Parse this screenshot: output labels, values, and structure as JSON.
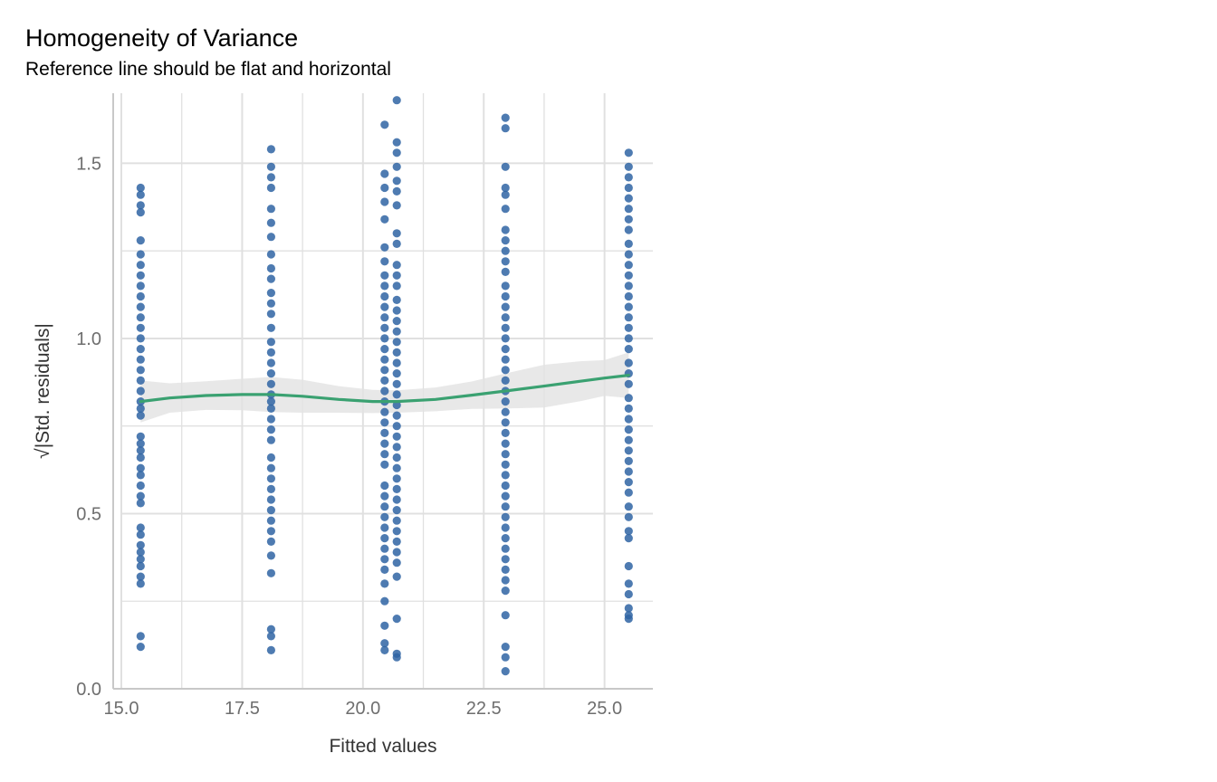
{
  "chart_data": {
    "type": "scatter",
    "title": "Homogeneity of Variance",
    "subtitle": "Reference line should be flat and horizontal",
    "xlabel": "Fitted values",
    "ylabel": "√|Std. residuals|",
    "xlim": [
      15.0,
      26.0
    ],
    "ylim": [
      0.0,
      1.7
    ],
    "x_ticks": [
      15.0,
      17.5,
      20.0,
      22.5,
      25.0
    ],
    "x_tick_labels": [
      "15.0",
      "17.5",
      "20.0",
      "22.5",
      "25.0"
    ],
    "y_ticks": [
      0.0,
      0.5,
      1.0,
      1.5
    ],
    "y_tick_labels": [
      "0.0",
      "0.5",
      "1.0",
      "1.5"
    ],
    "grid": true,
    "colors": {
      "points": "#2f64a3",
      "line": "#3aa171",
      "band": "#e2e2e2",
      "grid": "#e0e0e0",
      "axis": "#c8c8c8"
    },
    "point_groups": [
      {
        "x": 15.4,
        "y": [
          1.43,
          1.41,
          1.38,
          1.36,
          1.28,
          1.24,
          1.21,
          1.18,
          1.15,
          1.12,
          1.09,
          1.06,
          1.03,
          1.0,
          0.97,
          0.94,
          0.91,
          0.88,
          0.85,
          0.82,
          0.8,
          0.78,
          0.72,
          0.7,
          0.68,
          0.66,
          0.63,
          0.61,
          0.58,
          0.55,
          0.53,
          0.46,
          0.44,
          0.41,
          0.39,
          0.37,
          0.35,
          0.32,
          0.3,
          0.15,
          0.12
        ]
      },
      {
        "x": 18.1,
        "y": [
          1.54,
          1.49,
          1.46,
          1.43,
          1.37,
          1.33,
          1.29,
          1.24,
          1.2,
          1.17,
          1.13,
          1.1,
          1.07,
          1.03,
          0.99,
          0.96,
          0.93,
          0.9,
          0.87,
          0.84,
          0.82,
          0.8,
          0.77,
          0.74,
          0.71,
          0.66,
          0.63,
          0.6,
          0.57,
          0.54,
          0.51,
          0.48,
          0.45,
          0.42,
          0.38,
          0.33,
          0.17,
          0.15,
          0.11
        ]
      },
      {
        "x": 20.45,
        "y": [
          1.61,
          1.47,
          1.43,
          1.39,
          1.34,
          1.26,
          1.22,
          1.18,
          1.15,
          1.12,
          1.09,
          1.06,
          1.03,
          1.0,
          0.97,
          0.94,
          0.91,
          0.88,
          0.85,
          0.82,
          0.79,
          0.76,
          0.73,
          0.7,
          0.67,
          0.64,
          0.58,
          0.55,
          0.52,
          0.49,
          0.46,
          0.43,
          0.4,
          0.37,
          0.34,
          0.3,
          0.25,
          0.18,
          0.13,
          0.11
        ]
      },
      {
        "x": 20.7,
        "y": [
          1.68,
          1.56,
          1.53,
          1.49,
          1.45,
          1.42,
          1.38,
          1.3,
          1.27,
          1.21,
          1.18,
          1.15,
          1.11,
          1.08,
          1.05,
          1.02,
          0.99,
          0.96,
          0.93,
          0.9,
          0.87,
          0.84,
          0.81,
          0.78,
          0.75,
          0.72,
          0.69,
          0.66,
          0.63,
          0.6,
          0.57,
          0.54,
          0.51,
          0.48,
          0.45,
          0.42,
          0.39,
          0.36,
          0.32,
          0.2,
          0.1,
          0.09
        ]
      },
      {
        "x": 22.95,
        "y": [
          1.63,
          1.6,
          1.49,
          1.43,
          1.41,
          1.37,
          1.31,
          1.28,
          1.25,
          1.22,
          1.19,
          1.15,
          1.12,
          1.09,
          1.06,
          1.03,
          1.0,
          0.97,
          0.94,
          0.91,
          0.88,
          0.85,
          0.82,
          0.79,
          0.76,
          0.73,
          0.7,
          0.67,
          0.64,
          0.61,
          0.58,
          0.55,
          0.52,
          0.49,
          0.46,
          0.43,
          0.4,
          0.37,
          0.34,
          0.31,
          0.28,
          0.21,
          0.12,
          0.09,
          0.05
        ]
      },
      {
        "x": 25.5,
        "y": [
          1.53,
          1.49,
          1.46,
          1.43,
          1.4,
          1.37,
          1.34,
          1.31,
          1.27,
          1.24,
          1.21,
          1.18,
          1.15,
          1.12,
          1.09,
          1.06,
          1.03,
          1.0,
          0.97,
          0.93,
          0.9,
          0.87,
          0.83,
          0.8,
          0.77,
          0.74,
          0.71,
          0.68,
          0.65,
          0.62,
          0.59,
          0.56,
          0.52,
          0.49,
          0.45,
          0.43,
          0.35,
          0.3,
          0.27,
          0.23,
          0.21,
          0.2
        ]
      }
    ],
    "smooth_line": {
      "x": [
        15.4,
        16.0,
        16.75,
        17.5,
        18.1,
        18.75,
        19.5,
        20.2,
        20.7,
        21.5,
        22.25,
        22.95,
        23.75,
        24.5,
        25.0,
        25.5
      ],
      "y": [
        0.82,
        0.83,
        0.837,
        0.84,
        0.84,
        0.835,
        0.826,
        0.82,
        0.82,
        0.826,
        0.838,
        0.85,
        0.864,
        0.878,
        0.887,
        0.895
      ]
    },
    "confidence_band": {
      "x": [
        15.4,
        16.0,
        16.75,
        17.5,
        18.1,
        18.75,
        19.5,
        20.2,
        20.7,
        21.5,
        22.25,
        22.95,
        23.75,
        24.5,
        25.0,
        25.5
      ],
      "upper": [
        0.88,
        0.872,
        0.878,
        0.885,
        0.89,
        0.882,
        0.864,
        0.853,
        0.852,
        0.86,
        0.877,
        0.9,
        0.925,
        0.935,
        0.938,
        0.96
      ],
      "lower": [
        0.76,
        0.788,
        0.796,
        0.795,
        0.79,
        0.788,
        0.788,
        0.787,
        0.788,
        0.792,
        0.799,
        0.8,
        0.803,
        0.821,
        0.836,
        0.83
      ]
    }
  }
}
